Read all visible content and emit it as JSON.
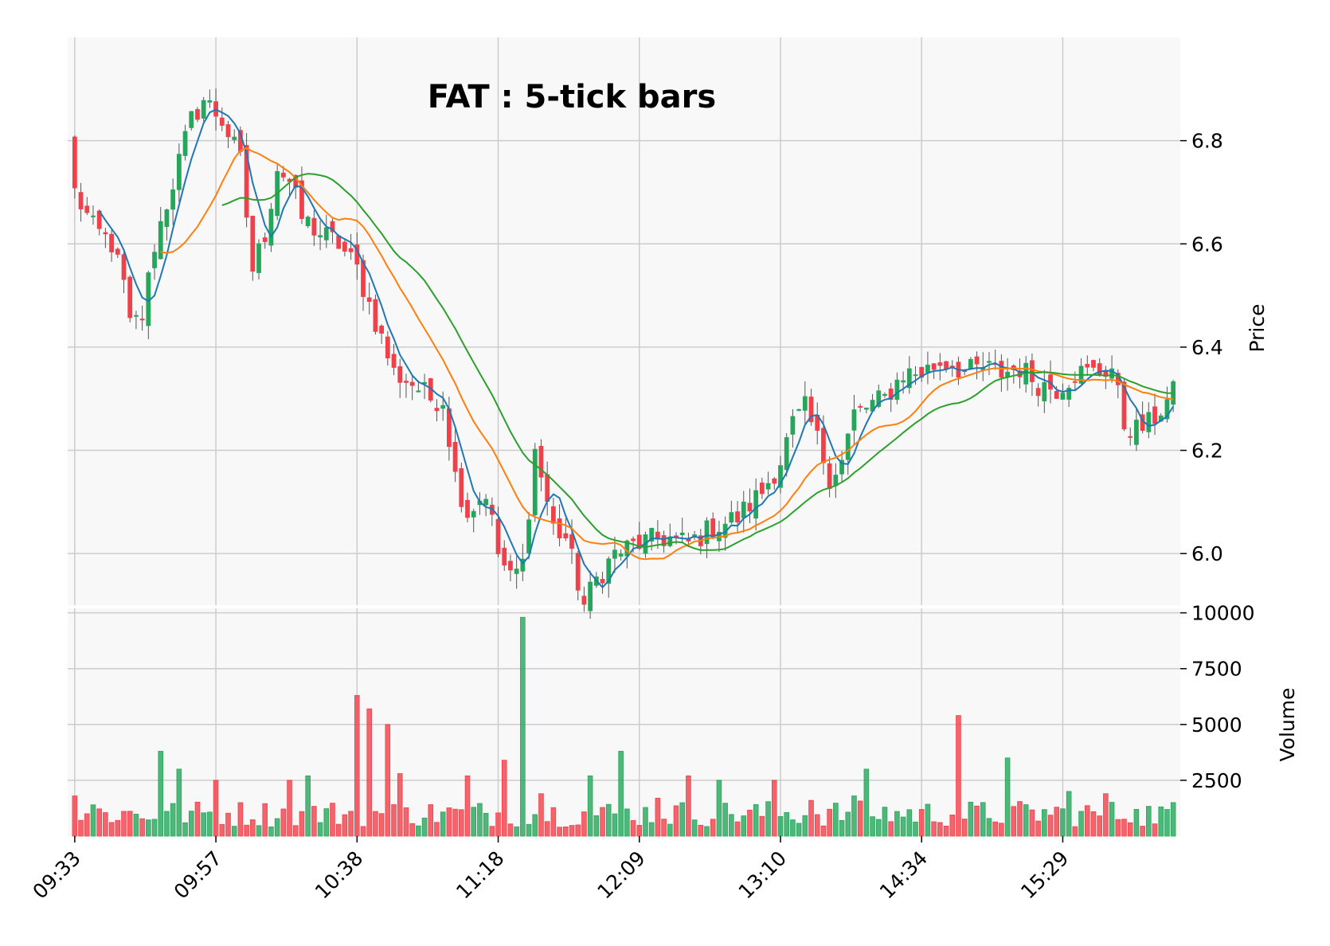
{
  "chart_data": {
    "type": "candlestick",
    "title": "FAT : 5-tick bars",
    "price_axis": {
      "label": "Price",
      "ticks": [
        "6.0",
        "6.2",
        "6.4",
        "6.6",
        "6.8"
      ],
      "range": [
        5.9,
        7.0
      ]
    },
    "volume_axis": {
      "label": "Volume",
      "ticks": [
        "2500",
        "5000",
        "7500",
        "10000"
      ],
      "range": [
        0,
        10000
      ]
    },
    "x_tick_labels": [
      "09:33",
      "09:57",
      "10:38",
      "11:18",
      "12:09",
      "13:10",
      "14:34",
      "15:29"
    ],
    "x_tick_bar_index": [
      0,
      23,
      46,
      69,
      92,
      115,
      138,
      161
    ],
    "bar_count": 180,
    "grid": true,
    "colors": {
      "up": "#26a65b",
      "down": "#f0404a",
      "ma_short": "#1f77b4",
      "ma_mid": "#ff7f0e",
      "ma_long": "#2ca02c",
      "panel": "#f8f8f8",
      "grid": "#cccccc"
    },
    "moving_averages": [
      {
        "window": 5,
        "color": "#1f77b4"
      },
      {
        "window": 15,
        "color": "#ff7f0e"
      },
      {
        "window": 25,
        "color": "#2ca02c"
      }
    ],
    "close_anchors": [
      [
        0,
        6.7
      ],
      [
        3,
        6.63
      ],
      [
        6,
        6.6
      ],
      [
        8,
        6.52
      ],
      [
        9,
        6.44
      ],
      [
        11,
        6.46
      ],
      [
        13,
        6.6
      ],
      [
        16,
        6.72
      ],
      [
        19,
        6.84
      ],
      [
        21,
        6.88
      ],
      [
        24,
        6.84
      ],
      [
        27,
        6.76
      ],
      [
        29,
        6.55
      ],
      [
        31,
        6.62
      ],
      [
        33,
        6.75
      ],
      [
        35,
        6.72
      ],
      [
        37,
        6.65
      ],
      [
        40,
        6.62
      ],
      [
        43,
        6.6
      ],
      [
        46,
        6.55
      ],
      [
        49,
        6.45
      ],
      [
        52,
        6.35
      ],
      [
        55,
        6.33
      ],
      [
        58,
        6.3
      ],
      [
        60,
        6.3
      ],
      [
        62,
        6.15
      ],
      [
        64,
        6.08
      ],
      [
        67,
        6.12
      ],
      [
        69,
        6.0
      ],
      [
        71,
        5.95
      ],
      [
        73,
        5.98
      ],
      [
        75,
        6.2
      ],
      [
        78,
        6.05
      ],
      [
        80,
        6.03
      ],
      [
        83,
        5.9
      ],
      [
        85,
        5.95
      ],
      [
        88,
        6.0
      ],
      [
        92,
        6.02
      ],
      [
        96,
        6.03
      ],
      [
        100,
        6.02
      ],
      [
        104,
        6.05
      ],
      [
        108,
        6.07
      ],
      [
        112,
        6.12
      ],
      [
        115,
        6.18
      ],
      [
        117,
        6.25
      ],
      [
        119,
        6.28
      ],
      [
        121,
        6.22
      ],
      [
        123,
        6.15
      ],
      [
        125,
        6.18
      ],
      [
        127,
        6.27
      ],
      [
        130,
        6.29
      ],
      [
        132,
        6.3
      ],
      [
        135,
        6.35
      ],
      [
        138,
        6.35
      ],
      [
        141,
        6.37
      ],
      [
        143,
        6.37
      ],
      [
        145,
        6.35
      ],
      [
        148,
        6.36
      ],
      [
        151,
        6.35
      ],
      [
        154,
        6.36
      ],
      [
        157,
        6.33
      ],
      [
        160,
        6.32
      ],
      [
        163,
        6.35
      ],
      [
        166,
        6.35
      ],
      [
        169,
        6.36
      ],
      [
        171,
        6.25
      ],
      [
        173,
        6.24
      ],
      [
        175,
        6.25
      ],
      [
        177,
        6.28
      ],
      [
        179,
        6.31
      ]
    ],
    "volume_spikes": [
      [
        0,
        1800
      ],
      [
        3,
        1400
      ],
      [
        14,
        3800
      ],
      [
        17,
        3000
      ],
      [
        23,
        2500
      ],
      [
        35,
        2500
      ],
      [
        38,
        2700
      ],
      [
        46,
        6300
      ],
      [
        48,
        5700
      ],
      [
        51,
        5000
      ],
      [
        53,
        2800
      ],
      [
        64,
        2700
      ],
      [
        70,
        3400
      ],
      [
        73,
        9800
      ],
      [
        76,
        1900
      ],
      [
        84,
        2700
      ],
      [
        89,
        3800
      ],
      [
        95,
        1700
      ],
      [
        100,
        2700
      ],
      [
        105,
        2500
      ],
      [
        114,
        2500
      ],
      [
        120,
        1600
      ],
      [
        127,
        1800
      ],
      [
        129,
        3000
      ],
      [
        144,
        5400
      ],
      [
        152,
        3500
      ],
      [
        162,
        2000
      ],
      [
        168,
        1900
      ],
      [
        173,
        1200
      ]
    ]
  }
}
